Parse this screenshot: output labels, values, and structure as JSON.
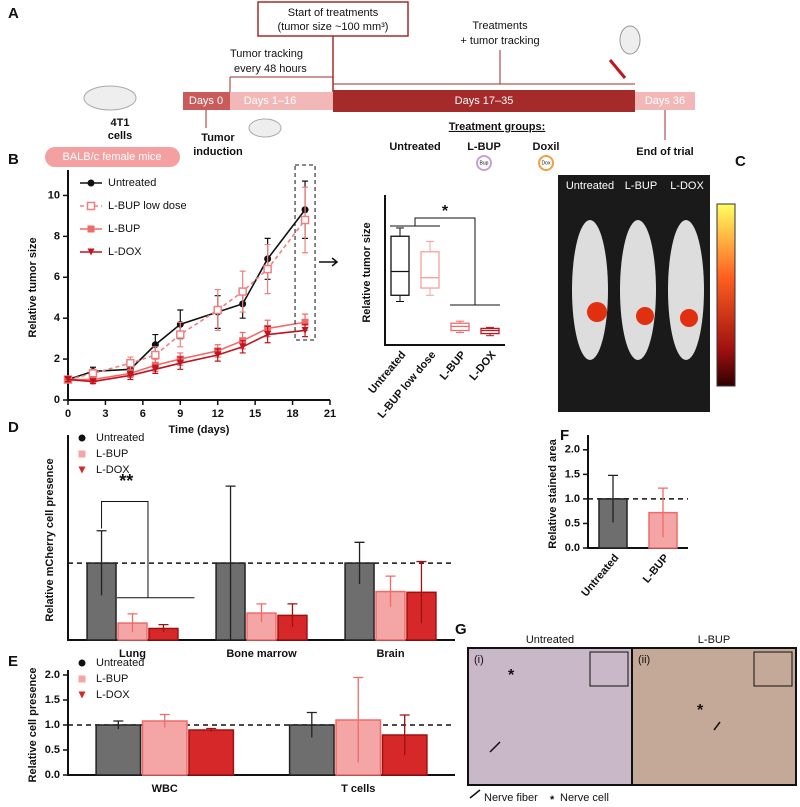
{
  "panel_labels": [
    "A",
    "B",
    "C",
    "D",
    "E",
    "F",
    "G"
  ],
  "timeline": {
    "start_title": "Start of treatments",
    "start_sub": "(tumor size ~100 mm³)",
    "tracking_1": "Tumor tracking",
    "tracking_2": "every 48 hours",
    "treat_1": "Treatments",
    "treat_2": "+ tumor tracking",
    "cells_1": "4T1",
    "cells_2": "cells",
    "mice": "BALB/c female mice",
    "segments": [
      "Days 0",
      "Days 1–16",
      "Days 17–35",
      "Days 36"
    ],
    "induction_1": "Tumor",
    "induction_2": "induction",
    "groups_title": "Treatment groups:",
    "groups": [
      "Untreated",
      "L-BUP",
      "Doxil"
    ],
    "badges": [
      "Bup",
      "Dox"
    ],
    "end": "End of trial"
  },
  "imaging": {
    "labels": [
      "Untreated",
      "L-BUP",
      "L-DOX"
    ]
  },
  "histology": {
    "titles": [
      "Untreated",
      "L-BUP"
    ],
    "subpanels": [
      "(i)",
      "(ii)"
    ],
    "star": "*",
    "legend_fiber": "Nerve fiber",
    "legend_cell": "Nerve cell"
  },
  "chart_data": [
    {
      "type": "line",
      "xlabel": "Time (days)",
      "ylabel": "Relative tumor size",
      "xlim": [
        0,
        21
      ],
      "ylim": [
        0,
        11
      ],
      "xticks": [
        0,
        3,
        6,
        9,
        12,
        15,
        18,
        21
      ],
      "yticks": [
        0,
        2,
        4,
        6,
        8,
        10
      ],
      "x": [
        0,
        2,
        5,
        7,
        9,
        12,
        14,
        16,
        19
      ],
      "series": [
        {
          "name": "Untreated",
          "color": "#111111",
          "marker": "circle",
          "style": "solid",
          "values": [
            1,
            1.4,
            1.5,
            2.7,
            3.7,
            4.3,
            4.7,
            6.9,
            9.3
          ],
          "errors": [
            0.1,
            0.2,
            0.3,
            0.5,
            0.7,
            0.8,
            0.7,
            1.0,
            1.4
          ]
        },
        {
          "name": "L-BUP low dose",
          "color": "#f08080",
          "marker": "square-open",
          "style": "dashed",
          "values": [
            1,
            1.3,
            1.8,
            2.2,
            3.2,
            4.4,
            5.3,
            6.4,
            8.8
          ],
          "errors": [
            0.1,
            0.2,
            0.3,
            0.4,
            0.6,
            1.0,
            1.0,
            1.2,
            1.6
          ]
        },
        {
          "name": "L-BUP",
          "color": "#f06a6a",
          "marker": "square",
          "style": "solid",
          "values": [
            1,
            1.0,
            1.3,
            1.7,
            2.0,
            2.4,
            2.9,
            3.5,
            3.8
          ],
          "errors": [
            0.1,
            0.1,
            0.2,
            0.3,
            0.3,
            0.3,
            0.4,
            0.4,
            0.4
          ]
        },
        {
          "name": "L-DOX",
          "color": "#c0141e",
          "marker": "triangle",
          "style": "solid",
          "values": [
            1,
            0.9,
            1.2,
            1.5,
            1.8,
            2.2,
            2.6,
            3.2,
            3.4
          ],
          "errors": [
            0.1,
            0.1,
            0.2,
            0.2,
            0.3,
            0.3,
            0.3,
            0.4,
            0.3
          ]
        }
      ]
    },
    {
      "type": "box",
      "ylabel": "Relative tumor size",
      "ylim": [
        2,
        16
      ],
      "annotation": "*",
      "categories": [
        "Untreated",
        "L-BUP low dose",
        "L-BUP",
        "L-DOX"
      ],
      "colors": [
        "#111111",
        "#f4a0a0",
        "#f06a6a",
        "#c0141e"
      ],
      "boxes": [
        {
          "min": 6.2,
          "q1": 6.8,
          "median": 9.1,
          "q3": 12.5,
          "max": 13.3
        },
        {
          "min": 6.8,
          "q1": 7.5,
          "median": 8.5,
          "q3": 11,
          "max": 12
        },
        {
          "min": 3.2,
          "q1": 3.4,
          "median": 3.8,
          "q3": 4.1,
          "max": 4.3
        },
        {
          "min": 2.9,
          "q1": 3.1,
          "median": 3.4,
          "q3": 3.6,
          "max": 3.7
        }
      ]
    },
    {
      "type": "bar",
      "ylabel": "Relative mCherry cell presence",
      "ylim": [
        0,
        2.6
      ],
      "reference_line": 1,
      "annotation": "**",
      "categories": [
        "Lung",
        "Bone marrow",
        "Brain"
      ],
      "series": [
        {
          "name": "Untreated",
          "color": "#6e6e6e",
          "marker": "circle",
          "values": [
            1,
            1,
            1
          ],
          "errors": [
            0.42,
            1.0,
            0.27
          ]
        },
        {
          "name": "L-BUP",
          "color": "#f4a6a6",
          "marker": "square",
          "values": [
            0.22,
            0.35,
            0.63
          ],
          "errors": [
            0.12,
            0.12,
            0.2
          ]
        },
        {
          "name": "L-DOX",
          "color": "#d62828",
          "marker": "triangle",
          "values": [
            0.15,
            0.32,
            0.62
          ],
          "errors": [
            0.05,
            0.15,
            0.4
          ]
        }
      ]
    },
    {
      "type": "bar",
      "ylabel": "Relative cell presence",
      "ylim": [
        0,
        2
      ],
      "reference_line": 1,
      "yticks": [
        {
          "value": 0,
          "label": "0.0"
        },
        0.5,
        {
          "value": 1,
          "label": "1.0"
        },
        1.5,
        {
          "value": 2,
          "label": "2.0"
        }
      ],
      "categories": [
        "WBC",
        "T cells"
      ],
      "series": [
        {
          "name": "Untreated",
          "color": "#6e6e6e",
          "marker": "circle",
          "values": [
            1,
            1
          ],
          "errors": [
            0.08,
            0.25
          ]
        },
        {
          "name": "L-BUP",
          "color": "#f4a6a6",
          "marker": "square",
          "values": [
            1.08,
            1.1
          ],
          "errors": [
            0.13,
            0.85
          ]
        },
        {
          "name": "L-DOX",
          "color": "#d62828",
          "marker": "triangle",
          "values": [
            0.9,
            0.8
          ],
          "errors": [
            0.03,
            0.4
          ]
        }
      ]
    },
    {
      "type": "bar",
      "ylabel": "Relative stained area",
      "ylim": [
        0,
        2.2
      ],
      "reference_line": 1,
      "yticks": [
        {
          "value": 0,
          "label": "0.0"
        },
        0.5,
        {
          "value": 1,
          "label": "1.0"
        },
        1.5,
        {
          "value": 2,
          "label": "2.0"
        }
      ],
      "categories": [
        "Untreated",
        "L-BUP"
      ],
      "series": [
        {
          "name": null,
          "colors": [
            "#6e6e6e",
            "#f4a6a6"
          ],
          "values": [
            1.0,
            0.72
          ],
          "errors": [
            0.48,
            0.5
          ]
        }
      ]
    }
  ]
}
